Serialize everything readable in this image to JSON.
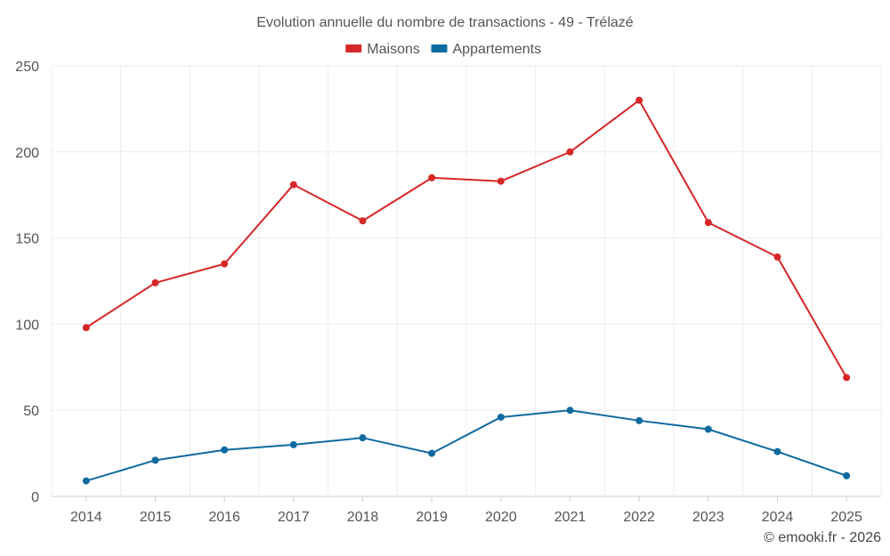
{
  "chart_data": {
    "type": "line",
    "title": "Evolution annuelle du nombre de transactions - 49 - Trélazé",
    "categories": [
      "2014",
      "2015",
      "2016",
      "2017",
      "2018",
      "2019",
      "2020",
      "2021",
      "2022",
      "2023",
      "2024",
      "2025"
    ],
    "series": [
      {
        "name": "Maisons",
        "color": "#d62728",
        "values": [
          98,
          124,
          135,
          181,
          160,
          185,
          183,
          200,
          230,
          159,
          139,
          69
        ]
      },
      {
        "name": "Appartements",
        "color": "#0f6aa0",
        "values": [
          9,
          21,
          27,
          30,
          34,
          25,
          46,
          50,
          44,
          39,
          26,
          12
        ]
      }
    ],
    "ylim": [
      0,
      250
    ],
    "yticks": [
      0,
      50,
      100,
      150,
      200,
      250
    ],
    "xlabel": "",
    "ylabel": "",
    "grid": true,
    "legend_position": "top-center"
  },
  "credit": "© emooki.fr - 2026"
}
